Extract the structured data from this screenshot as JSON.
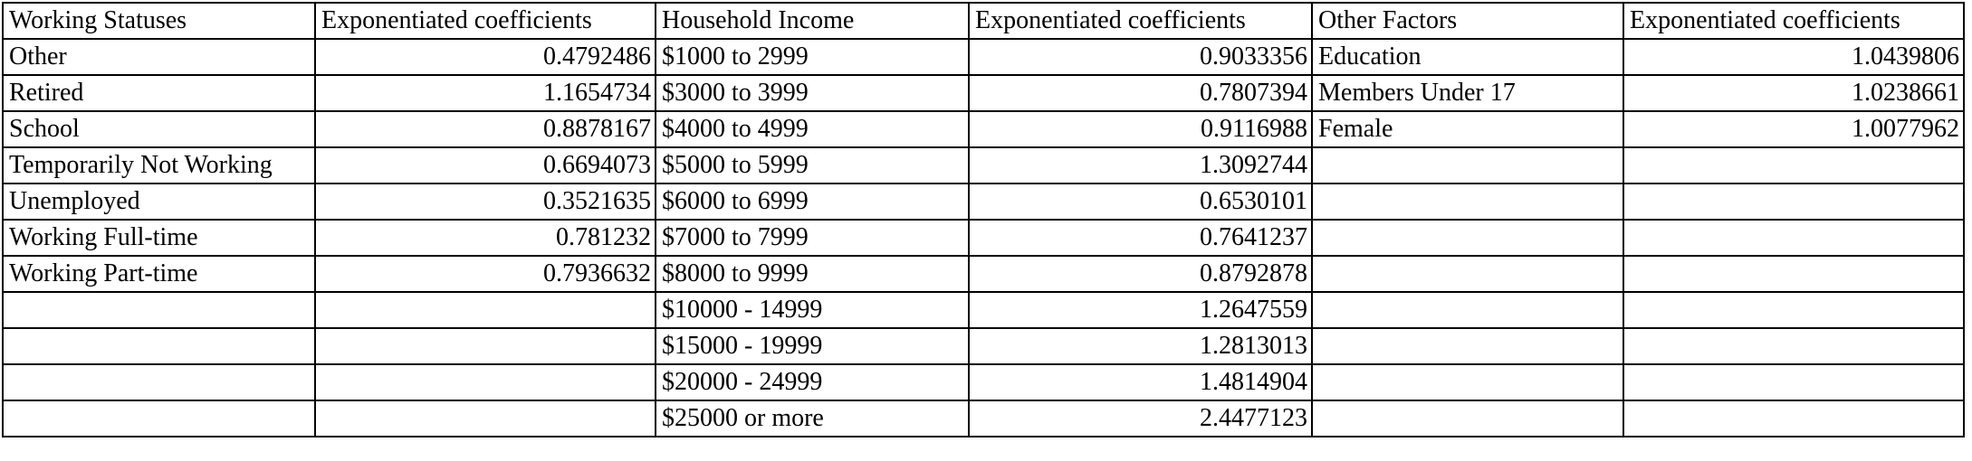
{
  "headers": [
    "Working Statuses",
    "Exponentiated coefficients",
    "Household Income",
    "Exponentiated coefficients",
    "Other Factors",
    "Exponentiated coefficients"
  ],
  "rows": [
    [
      "Other",
      "0.4792486",
      "$1000 to 2999",
      "0.9033356",
      "Education",
      "1.0439806"
    ],
    [
      "Retired",
      "1.1654734",
      "$3000 to 3999",
      "0.7807394",
      "Members Under 17",
      "1.0238661"
    ],
    [
      "School",
      "0.8878167",
      "$4000 to 4999",
      "0.9116988",
      "Female",
      "1.0077962"
    ],
    [
      "Temporarily Not Working",
      "0.6694073",
      "$5000 to 5999",
      "1.3092744",
      "",
      ""
    ],
    [
      "Unemployed",
      "0.3521635",
      "$6000 to 6999",
      "0.6530101",
      "",
      ""
    ],
    [
      "Working Full-time",
      "0.781232",
      "$7000 to 7999",
      "0.7641237",
      "",
      ""
    ],
    [
      "Working Part-time",
      "0.7936632",
      "$8000 to 9999",
      "0.8792878",
      "",
      ""
    ],
    [
      "",
      "",
      "$10000 - 14999",
      "1.2647559",
      "",
      ""
    ],
    [
      "",
      "",
      "$15000 - 19999",
      "1.2813013",
      "",
      ""
    ],
    [
      "",
      "",
      "$20000 - 24999",
      "1.4814904",
      "",
      ""
    ],
    [
      "",
      "",
      "$25000 or more",
      "2.4477123",
      "",
      ""
    ]
  ]
}
